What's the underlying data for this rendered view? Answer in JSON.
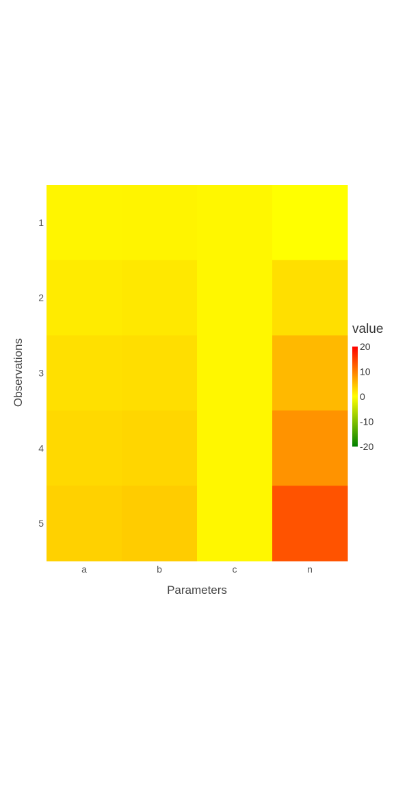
{
  "chart_data": {
    "type": "heatmap",
    "xlabel": "Parameters",
    "ylabel": "Observations",
    "x_categories": [
      "a",
      "b",
      "c",
      "n"
    ],
    "y_categories": [
      "1",
      "2",
      "3",
      "4",
      "5"
    ],
    "values": [
      [
        0.8,
        0.9,
        0.6,
        0
      ],
      [
        1.6,
        1.8,
        0.6,
        2.5
      ],
      [
        2.4,
        2.6,
        0.6,
        5.5
      ],
      [
        3.0,
        3.2,
        0.6,
        8.5
      ],
      [
        3.6,
        4.0,
        0.6,
        13.5
      ]
    ],
    "colorbar": {
      "title": "value",
      "min": -20,
      "max": 20,
      "ticks": [
        "20",
        "10",
        "0",
        "-10",
        "-20"
      ],
      "colors": [
        "#008000",
        "#ffff00",
        "#ff0000"
      ]
    }
  }
}
